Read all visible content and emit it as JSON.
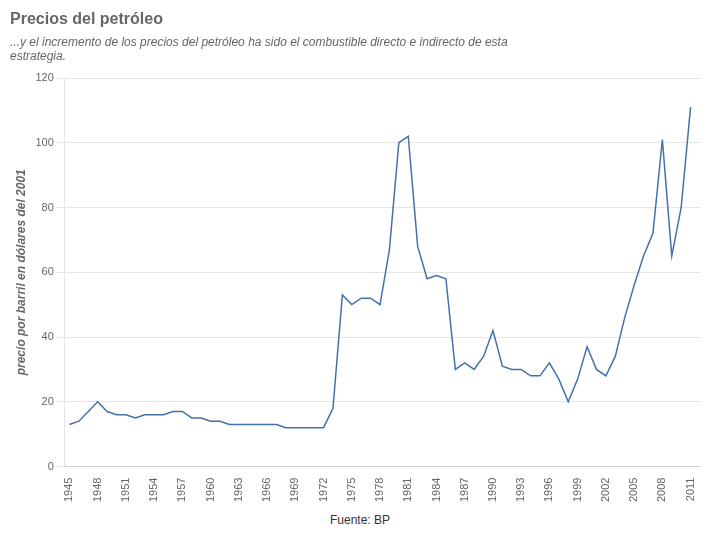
{
  "chart_data": {
    "type": "line",
    "title": "Precios del petróleo",
    "subtitle": "...y el incremento de los precios del petróleo ha sido el combustible directo e indirecto de esta\nestrategia.",
    "ylabel": "precio por barril en dólares del 2001",
    "source": "Fuente: BP",
    "color": "#4472a8",
    "x": [
      1945,
      1946,
      1947,
      1948,
      1949,
      1950,
      1951,
      1952,
      1953,
      1954,
      1955,
      1956,
      1957,
      1958,
      1959,
      1960,
      1961,
      1962,
      1963,
      1964,
      1965,
      1966,
      1967,
      1968,
      1969,
      1970,
      1971,
      1972,
      1973,
      1974,
      1975,
      1976,
      1977,
      1978,
      1979,
      1980,
      1981,
      1982,
      1983,
      1984,
      1985,
      1986,
      1987,
      1988,
      1989,
      1990,
      1991,
      1992,
      1993,
      1994,
      1995,
      1996,
      1997,
      1998,
      1999,
      2000,
      2001,
      2002,
      2003,
      2004,
      2005,
      2006,
      2007,
      2008,
      2009,
      2010,
      2011
    ],
    "values": [
      13,
      14,
      17,
      20,
      17,
      16,
      16,
      15,
      16,
      16,
      16,
      17,
      17,
      15,
      15,
      14,
      14,
      13,
      13,
      13,
      13,
      13,
      13,
      12,
      12,
      12,
      12,
      12,
      18,
      53,
      50,
      52,
      52,
      50,
      67,
      100,
      102,
      68,
      58,
      59,
      58,
      30,
      32,
      30,
      34,
      42,
      31,
      30,
      30,
      28,
      28,
      32,
      27,
      20,
      27,
      37,
      30,
      28,
      34,
      46,
      56,
      65,
      72,
      101,
      65,
      80,
      111
    ],
    "xlim": [
      1944.5,
      2012
    ],
    "xticks": [
      1945,
      1948,
      1951,
      1954,
      1957,
      1960,
      1963,
      1966,
      1969,
      1972,
      1975,
      1978,
      1981,
      1984,
      1987,
      1990,
      1993,
      1996,
      1999,
      2002,
      2005,
      2008,
      2011
    ],
    "ylim": [
      0,
      120
    ],
    "yticks": [
      0,
      20,
      40,
      60,
      80,
      100,
      120
    ],
    "grid": "y"
  }
}
